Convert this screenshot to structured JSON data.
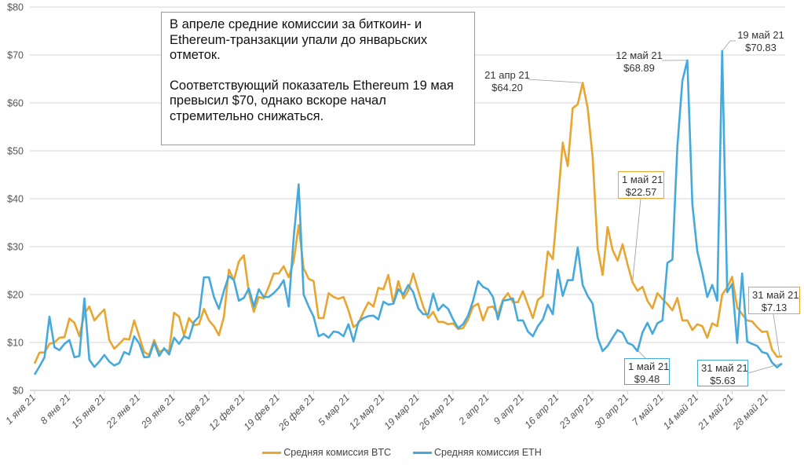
{
  "chart_data": {
    "type": "line",
    "ylim": [
      0,
      80
    ],
    "y_ticks": [
      "$0",
      "$10",
      "$20",
      "$30",
      "$40",
      "$50",
      "$60",
      "$70",
      "$80"
    ],
    "grid": true,
    "x_tick_labels": [
      "1 янв 21",
      "8 янв 21",
      "15 янв 21",
      "22 янв 21",
      "29 янв 21",
      "5 фев 21",
      "12 фев 21",
      "19 фев 21",
      "26 фев 21",
      "5 мар 21",
      "12 мар 21",
      "19 мар 21",
      "26 мар 21",
      "2 апр 21",
      "9 апр 21",
      "16 апр 21",
      "23 апр 21",
      "30 апр 21",
      "7 май 21",
      "14 май 21",
      "21 май 21",
      "28 май 21"
    ],
    "legend_position": "bottom",
    "series": [
      {
        "name": "Средняя комиссия BTC",
        "color": "#e8a52f",
        "values": [
          5.6,
          7.9,
          7.9,
          9.7,
          10,
          11,
          11.1,
          15,
          14.1,
          11.3,
          16,
          17.5,
          14.6,
          15.8,
          16.9,
          10.5,
          8.7,
          9.7,
          10.8,
          10.6,
          14.6,
          11.3,
          8,
          7.4,
          10.5,
          8,
          8.5,
          8.2,
          16.2,
          15.4,
          11.5,
          15.1,
          13.6,
          13.8,
          17,
          14.6,
          13.4,
          11.5,
          15.4,
          25.2,
          23,
          26.9,
          28.2,
          20.5,
          16.4,
          19.5,
          19.2,
          21.6,
          24.4,
          24.4,
          25.9,
          23.6,
          26.9,
          34.5,
          25.5,
          23.3,
          22.8,
          15.1,
          15.1,
          20.3,
          19.5,
          19.1,
          19.5,
          16.7,
          13.2,
          14,
          16.4,
          18.4,
          17.5,
          21.4,
          21.1,
          24.1,
          18.1,
          22.8,
          19.2,
          20.8,
          24.4,
          20.8,
          17.5,
          15.1,
          16.4,
          14.3,
          14.3,
          13.8,
          14,
          12.8,
          13,
          14.8,
          17.5,
          18.1,
          14.6,
          17.3,
          17.5,
          15.9,
          18.9,
          20.3,
          18.4,
          18.4,
          20.7,
          17.9,
          15.1,
          18.9,
          19.7,
          29,
          27.4,
          39.2,
          51.7,
          46.8,
          58.9,
          59.7,
          64.2,
          58.9,
          48.7,
          29.6,
          24.1,
          34.1,
          29.3,
          27.1,
          30.5,
          26.3,
          22.57,
          20.8,
          21.6,
          18.7,
          17.1,
          20.3,
          19.1,
          18,
          16.7,
          19.3,
          14.6,
          14.6,
          12.6,
          13.8,
          13.4,
          11,
          14,
          13.4,
          20,
          21.5,
          23.7,
          17.3,
          15.9,
          14.6,
          14.4,
          13.2,
          12.2,
          12.3,
          8.5,
          7,
          7.13
        ]
      },
      {
        "name": "Средняя комиссия ETH",
        "color": "#46a9dc",
        "values": [
          3.3,
          5,
          6.9,
          15.4,
          9,
          8.4,
          9.7,
          10.5,
          6.9,
          7.2,
          19.2,
          6.4,
          4.9,
          6,
          7.4,
          6,
          5.2,
          5.7,
          8,
          7.5,
          11.3,
          9.8,
          6.9,
          7,
          10,
          7.2,
          8.8,
          7.5,
          11,
          9.7,
          11.3,
          10.8,
          14.3,
          15.4,
          23.6,
          23.6,
          19.5,
          17,
          20.8,
          23.9,
          23,
          18.7,
          19.3,
          21.3,
          17.5,
          21.1,
          19.5,
          19.5,
          20.3,
          21.4,
          23,
          17.5,
          31.8,
          43,
          20,
          17.5,
          15.4,
          11.3,
          11.8,
          11,
          12.3,
          12.1,
          11.3,
          13.8,
          10.2,
          14.3,
          15.1,
          15.5,
          15.6,
          14.8,
          18.5,
          17.9,
          18.1,
          21.1,
          20,
          22,
          20.5,
          17.1,
          15.9,
          15.9,
          20.2,
          16.7,
          17.9,
          17,
          14.8,
          13,
          13.8,
          15.6,
          18.7,
          22.8,
          21.6,
          21.1,
          19.5,
          14.8,
          18.7,
          18.9,
          19.2,
          14.6,
          14.6,
          12.3,
          11.3,
          13.4,
          14.8,
          17.9,
          15.9,
          25.2,
          19.7,
          23,
          23,
          29.8,
          22,
          19.7,
          18.1,
          11,
          8.2,
          9.3,
          11,
          12.6,
          12,
          9.9,
          9.48,
          8.2,
          12.1,
          14.1,
          11.8,
          14,
          14.6,
          26.6,
          27.3,
          50.9,
          64.6,
          68.89,
          38.9,
          29,
          24.6,
          19.5,
          22,
          18.7,
          70.83,
          20.5,
          22.2,
          9.9,
          24.4,
          10.2,
          9.7,
          9.3,
          8,
          7.7,
          5.8,
          4.8,
          5.63
        ]
      }
    ],
    "annotations": [
      {
        "series": "BTC",
        "date": "21 апр 21",
        "value": "$64.20"
      },
      {
        "series": "ETH",
        "date": "12 май 21",
        "value": "$68.89"
      },
      {
        "series": "ETH",
        "date": "19 май 21",
        "value": "$70.83"
      },
      {
        "series": "BTC",
        "date": "1 май 21",
        "value": "$22.57"
      },
      {
        "series": "ETH",
        "date": "1 май 21",
        "value": "$9.48"
      },
      {
        "series": "ETH",
        "date": "31 май 21",
        "value": "$5.63"
      },
      {
        "series": "BTC",
        "date": "31 май 21",
        "value": "$7.13"
      }
    ]
  },
  "note": {
    "paragraph1": "В апреле средние комиссии за биткоин- и Ethereum-транзакции упали до январьских отметок.",
    "paragraph2": "Соответствующий показатель Ethereum 19 мая превысил $70, однако вскоре начал стремительно снижаться."
  }
}
